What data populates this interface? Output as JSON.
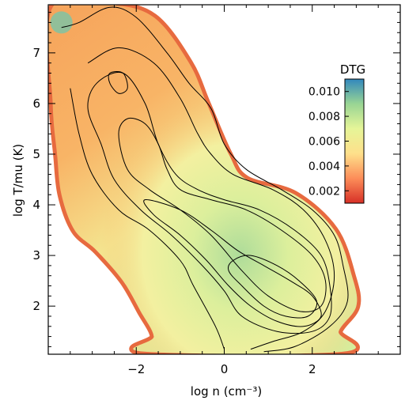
{
  "chart_data": {
    "type": "heatmap",
    "title": "",
    "xlabel": "log n (cm⁻³)",
    "ylabel": "log T/mu (K)",
    "xlim": [
      -4.0,
      4.0
    ],
    "ylim": [
      1.05,
      7.95
    ],
    "x_ticks": [
      -2,
      0,
      2
    ],
    "x_tick_labels": [
      "−2",
      "0",
      "2"
    ],
    "y_ticks": [
      2,
      3,
      4,
      5,
      6,
      7
    ],
    "y_tick_labels": [
      "2",
      "3",
      "4",
      "5",
      "6",
      "7"
    ],
    "colorbar": {
      "label": "DTG",
      "range": [
        0.001,
        0.011
      ],
      "ticks": [
        0.002,
        0.004,
        0.006,
        0.008,
        0.01
      ],
      "tick_labels": [
        "0.002",
        "0.004",
        "0.006",
        "0.008",
        "0.010"
      ],
      "colors": [
        "#d73027",
        "#fc8d59",
        "#fee08b",
        "#e6f598",
        "#99d594",
        "#3288bd"
      ]
    },
    "region_left_edge": [
      [
        -3.9,
        7.9
      ],
      [
        -3.9,
        6.0
      ],
      [
        -3.8,
        5.0
      ],
      [
        -3.7,
        4.2
      ],
      [
        -3.4,
        3.5
      ],
      [
        -2.9,
        3.1
      ],
      [
        -2.3,
        2.5
      ],
      [
        -1.9,
        1.9
      ],
      [
        -1.6,
        1.4
      ],
      [
        -1.8,
        1.1
      ]
    ],
    "region_right_edge": [
      [
        -2.6,
        7.95
      ],
      [
        -1.6,
        7.7
      ],
      [
        -0.8,
        6.8
      ],
      [
        -0.4,
        6.0
      ],
      [
        0.1,
        5.0
      ],
      [
        0.5,
        4.5
      ],
      [
        1.6,
        4.2
      ],
      [
        2.5,
        3.5
      ],
      [
        2.9,
        2.6
      ],
      [
        3.0,
        2.0
      ],
      [
        2.6,
        1.5
      ],
      [
        2.7,
        1.1
      ]
    ],
    "contours": [
      {
        "level": 1,
        "points": [
          [
            -3.7,
            7.5
          ],
          [
            -3.3,
            7.6
          ],
          [
            -2.6,
            7.9
          ],
          [
            -2.0,
            7.7
          ],
          [
            -1.3,
            7.0
          ],
          [
            -0.8,
            6.4
          ],
          [
            -0.3,
            5.9
          ],
          [
            0.0,
            5.2
          ],
          [
            0.5,
            4.7
          ],
          [
            1.3,
            4.3
          ],
          [
            2.0,
            3.9
          ],
          [
            2.5,
            3.4
          ],
          [
            2.7,
            2.8
          ],
          [
            2.8,
            2.1
          ],
          [
            2.4,
            1.6
          ],
          [
            1.6,
            1.2
          ],
          [
            0.9,
            1.1
          ]
        ]
      },
      {
        "level": 2,
        "points": [
          [
            -3.1,
            6.8
          ],
          [
            -2.4,
            7.1
          ],
          [
            -1.6,
            6.8
          ],
          [
            -1.0,
            6.1
          ],
          [
            -0.6,
            5.4
          ],
          [
            -0.3,
            5.0
          ],
          [
            0.2,
            4.6
          ],
          [
            1.1,
            4.3
          ],
          [
            1.8,
            3.9
          ],
          [
            2.3,
            3.3
          ],
          [
            2.5,
            2.6
          ],
          [
            2.3,
            1.9
          ],
          [
            1.8,
            1.5
          ],
          [
            1.1,
            1.3
          ],
          [
            0.6,
            1.15
          ]
        ]
      },
      {
        "level": 3,
        "points": [
          [
            -3.5,
            6.3
          ],
          [
            -3.3,
            5.4
          ],
          [
            -3.0,
            4.6
          ],
          [
            -2.4,
            3.9
          ],
          [
            -1.7,
            3.5
          ],
          [
            -1.0,
            2.9
          ],
          [
            -0.7,
            2.4
          ],
          [
            -0.2,
            1.6
          ],
          [
            0.0,
            1.15
          ]
        ]
      },
      {
        "level": 4,
        "points": [
          [
            -3.1,
            5.9
          ],
          [
            -2.8,
            5.2
          ],
          [
            -2.5,
            4.5
          ],
          [
            -1.9,
            3.9
          ],
          [
            -1.2,
            3.4
          ],
          [
            -0.5,
            2.8
          ],
          [
            0.0,
            2.3
          ],
          [
            0.4,
            1.8
          ],
          [
            1.2,
            1.5
          ],
          [
            2.0,
            1.5
          ],
          [
            2.4,
            1.8
          ],
          [
            2.4,
            2.4
          ],
          [
            2.2,
            3.0
          ],
          [
            1.6,
            3.5
          ],
          [
            0.8,
            3.9
          ],
          [
            0.0,
            4.1
          ],
          [
            -0.6,
            4.3
          ],
          [
            -1.1,
            4.6
          ],
          [
            -1.5,
            5.2
          ],
          [
            -1.8,
            6.0
          ],
          [
            -2.3,
            6.6
          ],
          [
            -2.9,
            6.4
          ],
          [
            -3.1,
            5.9
          ]
        ]
      },
      {
        "level": 5,
        "points": [
          [
            -2.4,
            5.4
          ],
          [
            -2.2,
            4.7
          ],
          [
            -1.7,
            4.3
          ],
          [
            -1.0,
            3.9
          ],
          [
            -0.3,
            3.4
          ],
          [
            0.4,
            2.7
          ],
          [
            1.0,
            2.2
          ],
          [
            1.7,
            1.9
          ],
          [
            2.2,
            2.0
          ],
          [
            2.3,
            2.5
          ],
          [
            2.0,
            3.0
          ],
          [
            1.3,
            3.5
          ],
          [
            0.5,
            3.9
          ],
          [
            -0.3,
            4.1
          ],
          [
            -1.0,
            4.3
          ],
          [
            -1.3,
            4.7
          ],
          [
            -1.5,
            5.2
          ],
          [
            -1.8,
            5.6
          ],
          [
            -2.2,
            5.7
          ],
          [
            -2.4,
            5.4
          ]
        ]
      },
      {
        "level": 6,
        "points": [
          [
            -1.8,
            4.1
          ],
          [
            -1.0,
            3.9
          ],
          [
            -0.3,
            3.5
          ],
          [
            0.3,
            3.1
          ],
          [
            0.9,
            2.8
          ],
          [
            1.5,
            2.5
          ],
          [
            2.0,
            2.2
          ],
          [
            2.2,
            1.8
          ],
          [
            1.8,
            1.6
          ],
          [
            1.2,
            1.7
          ],
          [
            0.6,
            2.0
          ],
          [
            0.1,
            2.4
          ],
          [
            -0.4,
            2.9
          ],
          [
            -1.0,
            3.4
          ],
          [
            -1.6,
            3.8
          ],
          [
            -1.8,
            4.1
          ]
        ]
      },
      {
        "level": 7,
        "points": [
          [
            0.2,
            2.9
          ],
          [
            0.6,
            3.0
          ],
          [
            1.2,
            2.8
          ],
          [
            1.7,
            2.5
          ],
          [
            2.1,
            2.1
          ],
          [
            1.9,
            1.8
          ],
          [
            1.4,
            1.8
          ],
          [
            0.9,
            2.0
          ],
          [
            0.4,
            2.4
          ],
          [
            0.1,
            2.7
          ],
          [
            0.2,
            2.9
          ]
        ]
      },
      {
        "level": 8,
        "points": [
          [
            -2.6,
            6.6
          ],
          [
            -2.3,
            6.6
          ],
          [
            -2.2,
            6.3
          ],
          [
            -2.4,
            6.2
          ],
          [
            -2.6,
            6.4
          ],
          [
            -2.6,
            6.6
          ]
        ]
      }
    ],
    "grid": false
  }
}
